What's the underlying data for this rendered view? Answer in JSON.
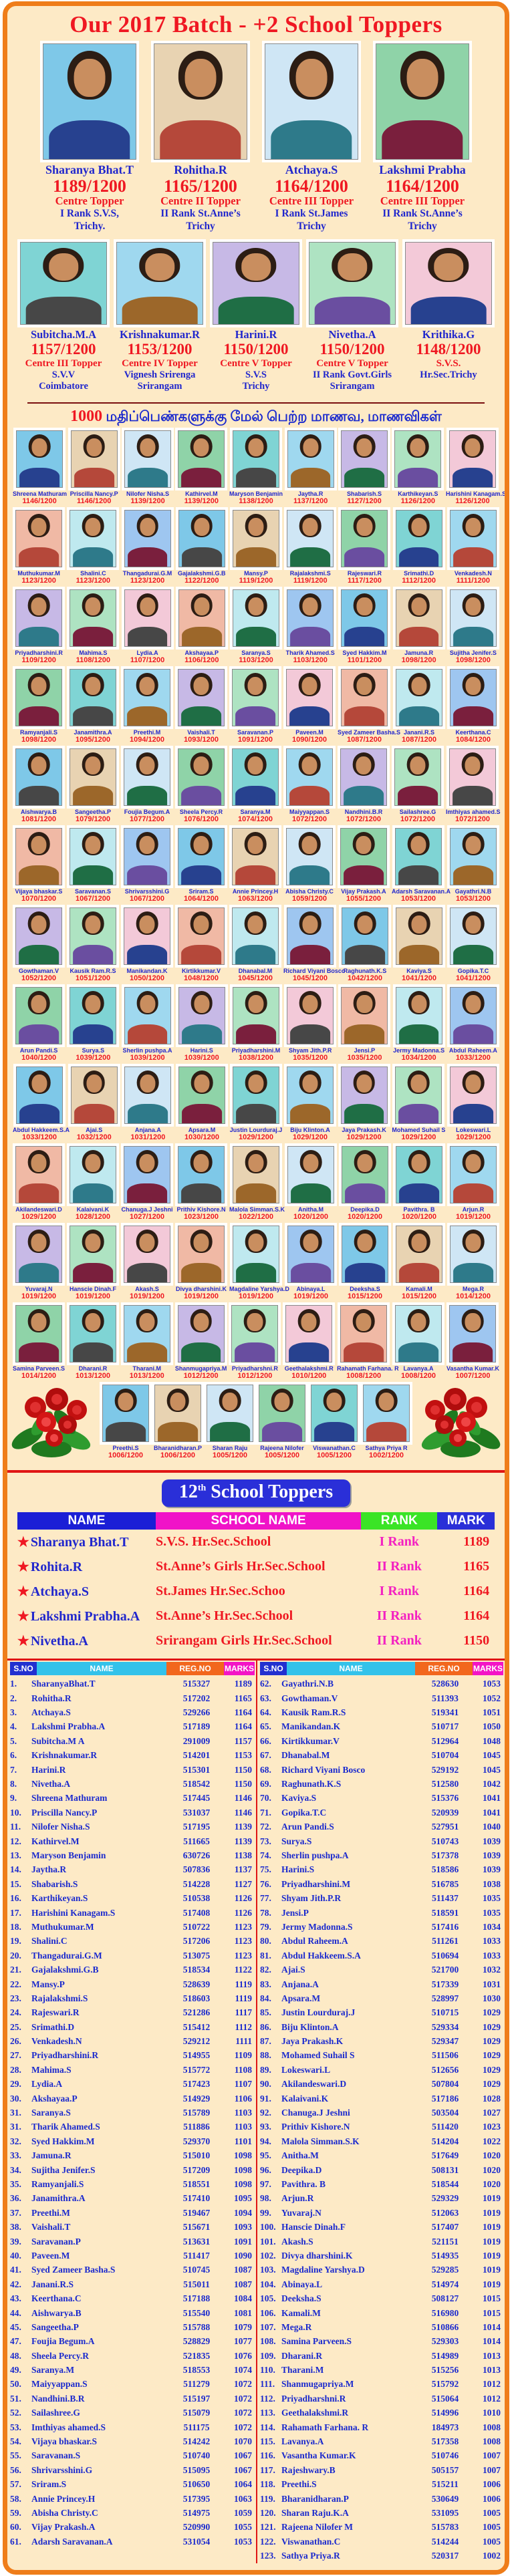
{
  "header": {
    "title": "Our 2017 Batch - +2 School Toppers"
  },
  "top_toppers": [
    {
      "name": "Sharanya Bhat.T",
      "score": "1189/1200",
      "line1": "Centre Topper",
      "line2": "I Rank S.V.S,",
      "line3": "Trichy."
    },
    {
      "name": "Rohitha.R",
      "score": "1165/1200",
      "line1": "Centre II Topper",
      "line2": "II Rank St.Anne’s",
      "line3": "Trichy"
    },
    {
      "name": "Atchaya.S",
      "score": "1164/1200",
      "line1": "Centre III Topper",
      "line2": "I Rank St.James",
      "line3": "Trichy"
    },
    {
      "name": "Lakshmi Prabha",
      "score": "1164/1200",
      "line1": "Centre III Topper",
      "line2": "II Rank St.Anne’s",
      "line3": "Trichy"
    }
  ],
  "second_toppers": [
    {
      "name": "Subitcha.M.A",
      "score": "1157/1200",
      "line1": "Centre III Topper",
      "line2": "S.V.V",
      "line3": "Coimbatore"
    },
    {
      "name": "Krishnakumar.R",
      "score": "1153/1200",
      "line1": "Centre IV Topper",
      "line2": "Vignesh Srirenga",
      "line3": "Srirangam"
    },
    {
      "name": "Harini.R",
      "score": "1150/1200",
      "line1": "Centre V Topper",
      "line2": "S.V.S",
      "line3": "Trichy"
    },
    {
      "name": "Nivetha.A",
      "score": "1150/1200",
      "line1": "Centre V Topper",
      "line2": "II Rank Govt.Girls",
      "line3": "Srirangam"
    },
    {
      "name": "Krithika.G",
      "score": "1148/1200",
      "line1": "S.V.S.",
      "line2": "Hr.Sec.Trichy",
      "line3": ""
    }
  ],
  "tamil_heading": {
    "number": "1000",
    "text": "மதிப்பெண்களுக்கு மேல் பெற்ற மாணவ, மாணவிகள்"
  },
  "grid_last_row": [
    {
      "name": "Preethi.S",
      "score": "1006/1200"
    },
    {
      "name": "Bharanidharan.P",
      "score": "1006/1200"
    },
    {
      "name": "Sharan Raju",
      "score": "1005/1200"
    },
    {
      "name": "Rajeena Nilofer",
      "score": "1005/1200"
    },
    {
      "name": "Viswanathan.C",
      "score": "1005/1200"
    },
    {
      "name": "Sathya Priya R",
      "score": "1002/1200"
    }
  ],
  "table": {
    "title_num": "12",
    "title_sup": "th",
    "title_rest": " School Toppers",
    "headers": [
      "NAME",
      "SCHOOL NAME",
      "RANK",
      "MARK"
    ],
    "star": "★",
    "rows": [
      {
        "name": "Sharanya Bhat.T",
        "school": "S.V.S. Hr.Sec.School",
        "rank": "I Rank",
        "mark": "1189"
      },
      {
        "name": "Rohita.R",
        "school": "St.Anne’s Girls Hr.Sec.School",
        "rank": "II Rank",
        "mark": "1165"
      },
      {
        "name": "Atchaya.S",
        "school": "St.James Hr.Sec.Schoo",
        "rank": "I Rank",
        "mark": "1164"
      },
      {
        "name": "Lakshmi Prabha.A",
        "school": "St.Anne’s Hr.Sec.School",
        "rank": "II Rank",
        "mark": "1164"
      },
      {
        "name": "Nivetha.A",
        "school": "Srirangam Girls Hr.Sec.School",
        "rank": "II Rank",
        "mark": "1150"
      }
    ]
  },
  "list": {
    "headers": [
      "S.NO",
      "NAME",
      "REG.NO",
      "MARKS"
    ],
    "left": [
      [
        "1.",
        "SharanyaBhat.T",
        "515327",
        "1189"
      ],
      [
        "2.",
        "Rohitha.R",
        "517202",
        "1165"
      ],
      [
        "3.",
        "Atchaya.S",
        "529266",
        "1164"
      ],
      [
        "4.",
        "Lakshmi Prabha.A",
        "517189",
        "1164"
      ],
      [
        "5.",
        "Subitcha.M A",
        "291009",
        "1157"
      ],
      [
        "6.",
        "Krishnakumar.R",
        "514201",
        "1153"
      ],
      [
        "7.",
        "Harini.R",
        "515301",
        "1150"
      ],
      [
        "8.",
        "Nivetha.A",
        "518542",
        "1150"
      ],
      [
        "9.",
        "Shreena Mathuram",
        "517445",
        "1146"
      ],
      [
        "10.",
        "Priscilla Nancy.P",
        "531037",
        "1146"
      ],
      [
        "11.",
        "Nilofer Nisha.S",
        "517195",
        "1139"
      ],
      [
        "12.",
        "Kathirvel.M",
        "511665",
        "1139"
      ],
      [
        "13.",
        "Maryson Benjamin",
        "630726",
        "1138"
      ],
      [
        "14.",
        "Jaytha.R",
        "507836",
        "1137"
      ],
      [
        "15.",
        "Shabarish.S",
        "514228",
        "1127"
      ],
      [
        "16.",
        "Karthikeyan.S",
        "510538",
        "1126"
      ],
      [
        "17.",
        "Harishini Kanagam.S",
        "517408",
        "1126"
      ],
      [
        "18.",
        "Muthukumar.M",
        "510722",
        "1123"
      ],
      [
        "19.",
        "Shalini.C",
        "517206",
        "1123"
      ],
      [
        "20.",
        "Thangadurai.G.M",
        "513075",
        "1123"
      ],
      [
        "21.",
        "Gajalakshmi.G.B",
        "518534",
        "1122"
      ],
      [
        "22.",
        "Mansy.P",
        "528639",
        "1119"
      ],
      [
        "23.",
        "Rajalakshmi.S",
        "518603",
        "1119"
      ],
      [
        "24.",
        "Rajeswari.R",
        "521286",
        "1117"
      ],
      [
        "25.",
        "Srimathi.D",
        "515412",
        "1112"
      ],
      [
        "26.",
        "Venkadesh.N",
        "529212",
        "1111"
      ],
      [
        "27.",
        "Priyadharshini.R",
        "514955",
        "1109"
      ],
      [
        "28.",
        "Mahima.S",
        "515772",
        "1108"
      ],
      [
        "29.",
        "Lydia.A",
        "517423",
        "1107"
      ],
      [
        "30.",
        "Akshayaa.P",
        "514929",
        "1106"
      ],
      [
        "31.",
        "Saranya.S",
        "515789",
        "1103"
      ],
      [
        "31.",
        "Tharik Ahamed.S",
        "511886",
        "1103"
      ],
      [
        "32.",
        "Syed Hakkim.M",
        "529370",
        "1101"
      ],
      [
        "33.",
        "Jamuna.R",
        "515010",
        "1098"
      ],
      [
        "34.",
        "Sujitha Jenifer.S",
        "517209",
        "1098"
      ],
      [
        "35.",
        "Ramyanjali.S",
        "518551",
        "1098"
      ],
      [
        "36.",
        "Janamithra.A",
        "517410",
        "1095"
      ],
      [
        "37.",
        "Preethi.M",
        "519467",
        "1094"
      ],
      [
        "38.",
        "Vaishali.T",
        "515671",
        "1093"
      ],
      [
        "39.",
        "Saravanan.P",
        "513631",
        "1091"
      ],
      [
        "40.",
        "Paveen.M",
        "511417",
        "1090"
      ],
      [
        "41.",
        "Syed Zameer Basha.S",
        "510745",
        "1087"
      ],
      [
        "42.",
        "Janani.R.S",
        "515011",
        "1087"
      ],
      [
        "43.",
        "Keerthana.C",
        "517188",
        "1084"
      ],
      [
        "44.",
        "Aishwarya.B",
        "515540",
        "1081"
      ],
      [
        "45.",
        "Sangeetha.P",
        "515788",
        "1079"
      ],
      [
        "47.",
        "Foujia Begum.A",
        "528829",
        "1077"
      ],
      [
        "48.",
        "Sheela Percy.R",
        "521835",
        "1076"
      ],
      [
        "49.",
        "Saranya.M",
        "518553",
        "1074"
      ],
      [
        "50.",
        "Maiyyappan.S",
        "511279",
        "1072"
      ],
      [
        "51.",
        "Nandhini.B.R",
        "515197",
        "1072"
      ],
      [
        "52.",
        "Sailashree.G",
        "515079",
        "1072"
      ],
      [
        "53.",
        "Imthiyas ahamed.S",
        "511175",
        "1072"
      ],
      [
        "54.",
        "Vijaya bhaskar.S",
        "514242",
        "1070"
      ],
      [
        "55.",
        "Saravanan.S",
        "510740",
        "1067"
      ],
      [
        "56.",
        "Shrivarsshini.G",
        "515095",
        "1067"
      ],
      [
        "57.",
        "Sriram.S",
        "510650",
        "1064"
      ],
      [
        "58.",
        "Annie Princey.H",
        "517395",
        "1063"
      ],
      [
        "59.",
        "Abisha Christy.C",
        "514975",
        "1059"
      ],
      [
        "60.",
        "Vijay Prakash.A",
        "520990",
        "1055"
      ],
      [
        "61.",
        "Adarsh Saravanan.A",
        "531054",
        "1053"
      ]
    ],
    "right": [
      [
        "62.",
        "Gayathri.N.B",
        "528630",
        "1053"
      ],
      [
        "63.",
        "Gowthaman.V",
        "511393",
        "1052"
      ],
      [
        "64.",
        "Kausik Ram.R.S",
        "519341",
        "1051"
      ],
      [
        "65.",
        "Manikandan.K",
        "510717",
        "1050"
      ],
      [
        "66.",
        "Kirtikkumar.V",
        "512964",
        "1048"
      ],
      [
        "67.",
        "Dhanabal.M",
        "510704",
        "1045"
      ],
      [
        "68.",
        "Richard Viyani Bosco",
        "529192",
        "1045"
      ],
      [
        "69.",
        "Raghunath.K.S",
        "512580",
        "1042"
      ],
      [
        "70.",
        "Kaviya.S",
        "515376",
        "1041"
      ],
      [
        "71.",
        "Gopika.T.C",
        "520939",
        "1041"
      ],
      [
        "72.",
        "Arun Pandi.S",
        "527951",
        "1040"
      ],
      [
        "73.",
        "Surya.S",
        "510743",
        "1039"
      ],
      [
        "74.",
        "Sherlin pushpa.A",
        "517378",
        "1039"
      ],
      [
        "75.",
        "Harini.S",
        "518586",
        "1039"
      ],
      [
        "76.",
        "Priyadharshini.M",
        "516785",
        "1038"
      ],
      [
        "77.",
        "Shyam Jith.P.R",
        "511437",
        "1035"
      ],
      [
        "78.",
        "Jensi.P",
        "518591",
        "1035"
      ],
      [
        "79.",
        "Jermy Madonna.S",
        "517416",
        "1034"
      ],
      [
        "80.",
        "Abdul Raheem.A",
        "511261",
        "1033"
      ],
      [
        "81.",
        "Abdul Hakkeem.S.A",
        "510694",
        "1033"
      ],
      [
        "82.",
        "Ajai.S",
        "521700",
        "1032"
      ],
      [
        "83.",
        "Anjana.A",
        "517339",
        "1031"
      ],
      [
        "84.",
        "Apsara.M",
        "528997",
        "1030"
      ],
      [
        "85.",
        "Justin Lourduraj.J",
        "510715",
        "1029"
      ],
      [
        "86.",
        "Biju Klinton.A",
        "529334",
        "1029"
      ],
      [
        "87.",
        "Jaya Prakash.K",
        "529347",
        "1029"
      ],
      [
        "88.",
        "Mohamed Suhail S",
        "511506",
        "1029"
      ],
      [
        "89.",
        "Lokeswari.L",
        "512656",
        "1029"
      ],
      [
        "90.",
        "Akilandeswari.D",
        "507804",
        "1029"
      ],
      [
        "91.",
        "Kalaivani.K",
        "517186",
        "1028"
      ],
      [
        "92.",
        "Chanuga.J Jeshni",
        "503504",
        "1027"
      ],
      [
        "93.",
        "Prithiv Kishore.N",
        "511420",
        "1023"
      ],
      [
        "94.",
        "Malola Simman.S.K",
        "514204",
        "1022"
      ],
      [
        "95.",
        "Anitha.M",
        "517649",
        "1020"
      ],
      [
        "96.",
        "Deepika.D",
        "508131",
        "1020"
      ],
      [
        "97.",
        "Pavithra. B",
        "518544",
        "1020"
      ],
      [
        "98.",
        "Arjun.R",
        "529329",
        "1019"
      ],
      [
        "99.",
        "Yuvaraj.N",
        "512063",
        "1019"
      ],
      [
        "100.",
        "Hanscie Dinah.F",
        "517407",
        "1019"
      ],
      [
        "101.",
        "Akash.S",
        "521151",
        "1019"
      ],
      [
        "102.",
        "Divya dharshini.K",
        "514935",
        "1019"
      ],
      [
        "103.",
        "Magdaline Yarshya.D",
        "529285",
        "1019"
      ],
      [
        "104.",
        "Abinaya.L",
        "514974",
        "1019"
      ],
      [
        "105.",
        "Deeksha.S",
        "508127",
        "1015"
      ],
      [
        "106.",
        "Kamali.M",
        "516980",
        "1015"
      ],
      [
        "107.",
        "Mega.R",
        "510866",
        "1014"
      ],
      [
        "108.",
        "Samina Parveen.S",
        "529303",
        "1014"
      ],
      [
        "109.",
        "Dharani.R",
        "514989",
        "1013"
      ],
      [
        "110.",
        "Tharani.M",
        "515256",
        "1013"
      ],
      [
        "111.",
        "Shanmugapriya.M",
        "515792",
        "1012"
      ],
      [
        "112.",
        "Priyadharshni.R",
        "515064",
        "1012"
      ],
      [
        "113.",
        "Geethalakshmi.R",
        "514996",
        "1010"
      ],
      [
        "114.",
        "Rahamath Farhana. R",
        "184973",
        "1008"
      ],
      [
        "115.",
        "Lavanya.A",
        "517358",
        "1008"
      ],
      [
        "116.",
        "Vasantha Kumar.K",
        "510746",
        "1007"
      ],
      [
        "117.",
        "Rajeshwary.B",
        "505157",
        "1007"
      ],
      [
        "118.",
        "Preethi.S",
        "515211",
        "1006"
      ],
      [
        "119.",
        "Bharanidharan.P",
        "530649",
        "1006"
      ],
      [
        "120.",
        "Sharan Raju.K.A",
        "531095",
        "1005"
      ],
      [
        "121.",
        "Rajeena Nilofer M",
        "515783",
        "1005"
      ],
      [
        "122.",
        "Viswanathan.C",
        "514244",
        "1005"
      ],
      [
        "123.",
        "Sathya Priya.R",
        "520317",
        "1002"
      ]
    ]
  },
  "colors": {
    "accent_orange": "#ef7d1a",
    "red": "#ef1822",
    "blue": "#2127cd",
    "magenta": "#f321c1",
    "cream": "#fdeac6"
  }
}
